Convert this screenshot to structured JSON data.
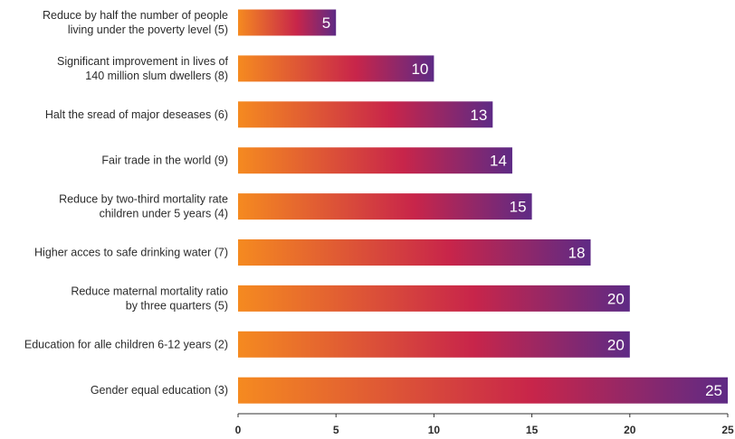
{
  "chart_data": {
    "type": "bar",
    "orientation": "horizontal",
    "categories": [
      [
        "Reduce by half the number of people",
        "living under the poverty level (5)"
      ],
      [
        "Significant improvement in lives of",
        "140 million slum dwellers (8)"
      ],
      [
        "Halt the sread of major deseases (6)"
      ],
      [
        "Fair trade in the world (9)"
      ],
      [
        "Reduce by two-third mortality rate",
        "children under 5 years (4)"
      ],
      [
        "Higher acces to safe drinking water (7)"
      ],
      [
        "Reduce maternal mortality ratio",
        "by three quarters (5)"
      ],
      [
        "Education for alle children 6-12 years (2)"
      ],
      [
        "Gender equal education (3)"
      ]
    ],
    "values": [
      5,
      10,
      13,
      14,
      15,
      18,
      20,
      20,
      25
    ],
    "xlim": [
      0,
      25
    ],
    "xticks": [
      0,
      5,
      10,
      15,
      20,
      25
    ],
    "grid": false,
    "legend": "none",
    "colors": {
      "gradient_start": "#f58a20",
      "gradient_mid": "#c8254a",
      "gradient_end": "#5e2a85",
      "value_text": "#ffffff",
      "axis": "#333333"
    }
  }
}
